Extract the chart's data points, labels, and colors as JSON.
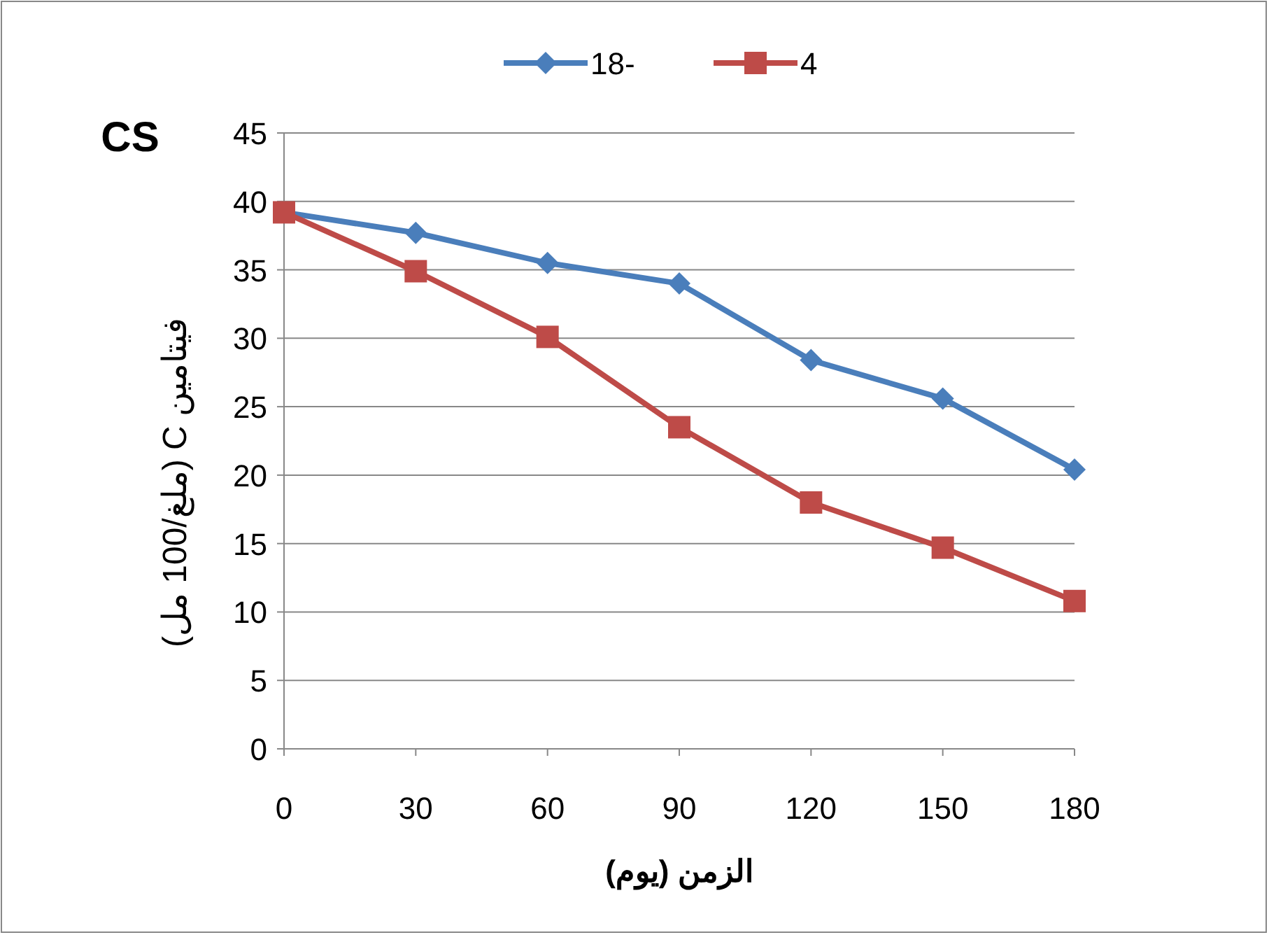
{
  "chart_data": {
    "type": "line",
    "title": "CS",
    "xlabel": "الزمن (يوم)",
    "ylabel": "فيتامين C (ملغ/100 مل)",
    "x": [
      0,
      30,
      60,
      90,
      120,
      150,
      180
    ],
    "series": [
      {
        "name": "18-",
        "color": "#4a7ebb",
        "values": [
          39.2,
          37.7,
          35.5,
          34.0,
          28.4,
          25.6,
          20.4
        ],
        "marker": "diamond"
      },
      {
        "name": "4",
        "color": "#be4b48",
        "values": [
          39.2,
          34.9,
          30.1,
          23.5,
          18.0,
          14.7,
          10.8
        ],
        "marker": "square"
      }
    ],
    "xlim": [
      0,
      180
    ],
    "xticks": [
      0,
      30,
      60,
      90,
      120,
      150,
      180
    ],
    "ylim": [
      0,
      45
    ],
    "yticks": [
      0,
      5,
      10,
      15,
      20,
      25,
      30,
      35,
      40,
      45
    ],
    "grid": "y",
    "legend": "top",
    "line_style": "solid"
  }
}
